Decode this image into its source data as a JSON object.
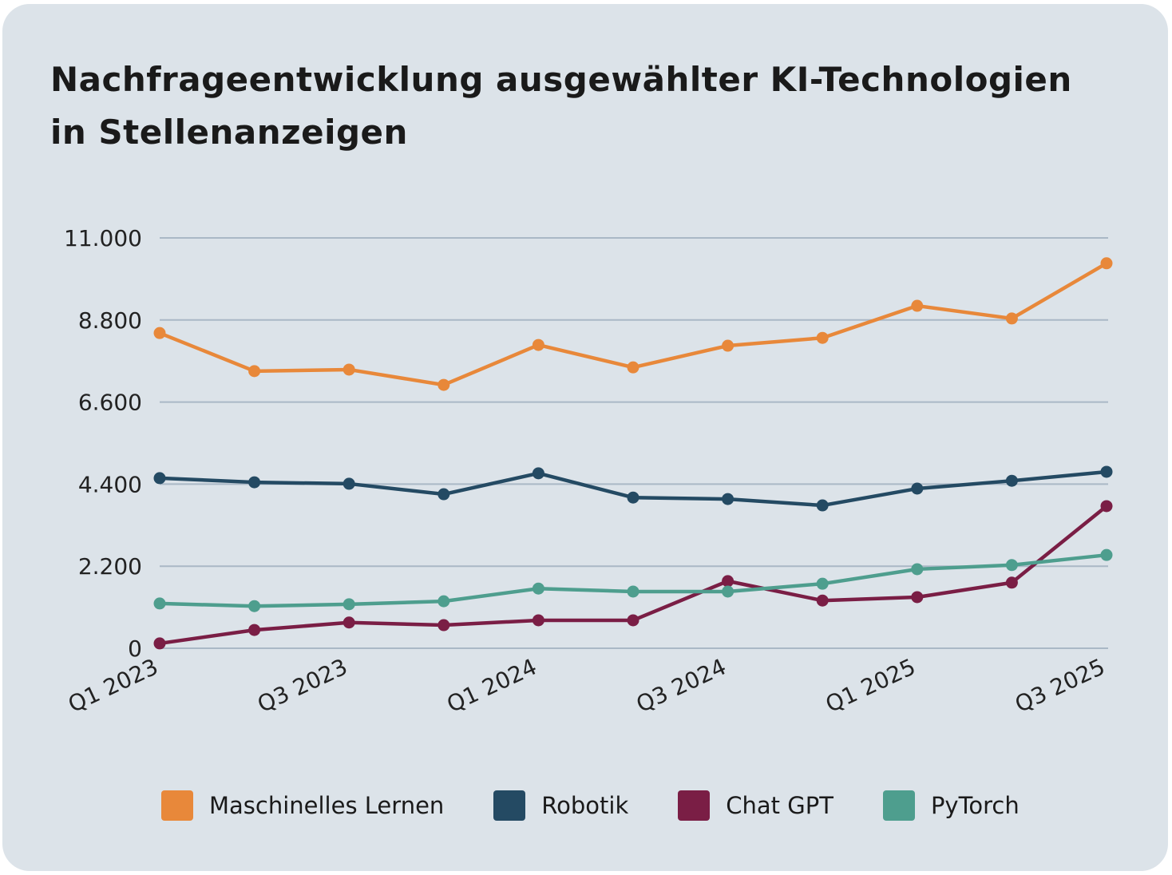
{
  "chart_data": {
    "type": "line",
    "title": "Nachfrageentwicklung ausgewählter KI-Technologien in Stellenanzeigen",
    "xlabel": "",
    "ylabel": "",
    "x": [
      "Q1 2023",
      "Q2 2023",
      "Q3 2023",
      "Q4 2023",
      "Q1 2024",
      "Q2 2024",
      "Q3 2024",
      "Q4 2024",
      "Q1 2025",
      "Q2 2025",
      "Q3 2025"
    ],
    "x_tick_labels": [
      "Q1 2023",
      "Q3 2023",
      "Q1 2024",
      "Q3 2024",
      "Q1 2025",
      "Q3 2025"
    ],
    "y_ticks": [
      "0",
      "2.200",
      "4.400",
      "6.600",
      "8.800",
      "11.000"
    ],
    "ylim": [
      0,
      11000
    ],
    "grid": "horizontal",
    "legend": "bottom",
    "series": [
      {
        "name": "Maschinelles Lernen",
        "color": "#e8883a",
        "values": [
          8450,
          7430,
          7470,
          7060,
          8130,
          7530,
          8110,
          8320,
          9180,
          8840,
          10320
        ]
      },
      {
        "name": "Robotik",
        "color": "#244a63",
        "values": [
          4560,
          4450,
          4410,
          4130,
          4690,
          4040,
          4000,
          3830,
          4280,
          4490,
          4730
        ]
      },
      {
        "name": "Chat GPT",
        "color": "#7a1e45",
        "values": [
          130,
          490,
          690,
          620,
          750,
          750,
          1800,
          1280,
          1370,
          1760,
          3810
        ]
      },
      {
        "name": "PyTorch",
        "color": "#4e9e8e",
        "values": [
          1200,
          1130,
          1180,
          1260,
          1600,
          1520,
          1520,
          1730,
          2120,
          2230,
          2500
        ]
      }
    ]
  }
}
